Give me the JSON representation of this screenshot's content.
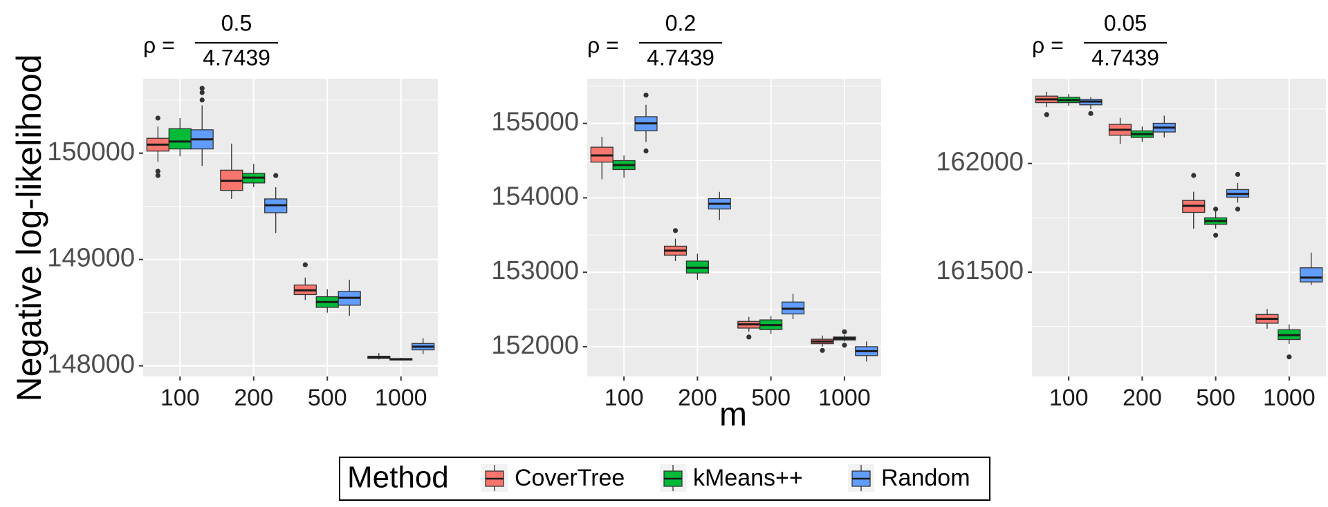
{
  "y_axis_label": "Negative log-likelihood",
  "x_axis_label": "m",
  "legend": {
    "title": "Method",
    "items": [
      {
        "label": "CoverTree",
        "color": "#F8766D"
      },
      {
        "label": "kMeans++",
        "color": "#00BA38"
      },
      {
        "label": "Random",
        "color": "#619CFF"
      }
    ]
  },
  "chart_data": [
    {
      "type": "box",
      "title": {
        "prefix": "ρ =",
        "numerator": "0.5",
        "denominator": "4.7439"
      },
      "xlabel": "",
      "ylabel": "Negative log-likelihood",
      "categories": [
        "100",
        "200",
        "500",
        "1000"
      ],
      "yticks": [
        148000,
        149000,
        150000
      ],
      "ylim": [
        147900,
        150700
      ],
      "grid": true,
      "series": [
        {
          "name": "CoverTree",
          "boxes": [
            {
              "min": 149920,
              "q1": 150020,
              "median": 150080,
              "q3": 150140,
              "max": 150250,
              "outliers": [
                150330,
                149830,
                149790
              ]
            },
            {
              "min": 149570,
              "q1": 149650,
              "median": 149740,
              "q3": 149840,
              "max": 150090,
              "outliers": []
            },
            {
              "min": 148620,
              "q1": 148670,
              "median": 148710,
              "q3": 148760,
              "max": 148830,
              "outliers": [
                148950
              ]
            },
            {
              "min": 148060,
              "q1": 148070,
              "median": 148080,
              "q3": 148090,
              "max": 148120,
              "outliers": []
            }
          ]
        },
        {
          "name": "kMeans++",
          "boxes": [
            {
              "min": 149970,
              "q1": 150040,
              "median": 150110,
              "q3": 150230,
              "max": 150330,
              "outliers": []
            },
            {
              "min": 149680,
              "q1": 149720,
              "median": 149770,
              "q3": 149810,
              "max": 149900,
              "outliers": []
            },
            {
              "min": 148500,
              "q1": 148550,
              "median": 148600,
              "q3": 148650,
              "max": 148720,
              "outliers": []
            },
            {
              "min": 148050,
              "q1": 148055,
              "median": 148062,
              "q3": 148068,
              "max": 148075,
              "outliers": []
            }
          ]
        },
        {
          "name": "Random",
          "boxes": [
            {
              "min": 149880,
              "q1": 150040,
              "median": 150130,
              "q3": 150220,
              "max": 150450,
              "outliers": [
                150610,
                150570,
                150500
              ]
            },
            {
              "min": 149250,
              "q1": 149440,
              "median": 149510,
              "q3": 149570,
              "max": 149680,
              "outliers": [
                149790
              ]
            },
            {
              "min": 148470,
              "q1": 148570,
              "median": 148640,
              "q3": 148700,
              "max": 148810,
              "outliers": []
            },
            {
              "min": 148110,
              "q1": 148150,
              "median": 148180,
              "q3": 148210,
              "max": 148260,
              "outliers": []
            }
          ]
        }
      ]
    },
    {
      "type": "box",
      "title": {
        "prefix": "ρ =",
        "numerator": "0.2",
        "denominator": "4.7439"
      },
      "xlabel": "m",
      "ylabel": "",
      "categories": [
        "100",
        "200",
        "500",
        "1000"
      ],
      "yticks": [
        152000,
        153000,
        154000,
        155000
      ],
      "ylim": [
        151600,
        155600
      ],
      "grid": true,
      "series": [
        {
          "name": "CoverTree",
          "boxes": [
            {
              "min": 154250,
              "q1": 154480,
              "median": 154570,
              "q3": 154680,
              "max": 154820,
              "outliers": []
            },
            {
              "min": 153150,
              "q1": 153230,
              "median": 153290,
              "q3": 153350,
              "max": 153450,
              "outliers": [
                153560
              ]
            },
            {
              "min": 152200,
              "q1": 152250,
              "median": 152300,
              "q3": 152340,
              "max": 152400,
              "outliers": [
                152130
              ]
            },
            {
              "min": 152000,
              "q1": 152040,
              "median": 152070,
              "q3": 152100,
              "max": 152150,
              "outliers": [
                151950
              ]
            }
          ]
        },
        {
          "name": "kMeans++",
          "boxes": [
            {
              "min": 154270,
              "q1": 154380,
              "median": 154440,
              "q3": 154500,
              "max": 154570,
              "outliers": []
            },
            {
              "min": 152900,
              "q1": 152990,
              "median": 153060,
              "q3": 153150,
              "max": 153250,
              "outliers": []
            },
            {
              "min": 152170,
              "q1": 152230,
              "median": 152290,
              "q3": 152360,
              "max": 152410,
              "outliers": []
            },
            {
              "min": 152070,
              "q1": 152090,
              "median": 152110,
              "q3": 152130,
              "max": 152160,
              "outliers": [
                152200,
                152020
              ]
            }
          ]
        },
        {
          "name": "Random",
          "boxes": [
            {
              "min": 154750,
              "q1": 154900,
              "median": 155000,
              "q3": 155090,
              "max": 155250,
              "outliers": [
                155380,
                154630
              ]
            },
            {
              "min": 153700,
              "q1": 153850,
              "median": 153920,
              "q3": 153990,
              "max": 154080,
              "outliers": []
            },
            {
              "min": 152370,
              "q1": 152440,
              "median": 152510,
              "q3": 152600,
              "max": 152710,
              "outliers": []
            },
            {
              "min": 151800,
              "q1": 151880,
              "median": 151940,
              "q3": 152000,
              "max": 152070,
              "outliers": []
            }
          ]
        }
      ]
    },
    {
      "type": "box",
      "title": {
        "prefix": "ρ =",
        "numerator": "0.05",
        "denominator": "4.7439"
      },
      "xlabel": "",
      "ylabel": "",
      "categories": [
        "100",
        "200",
        "500",
        "1000"
      ],
      "yticks": [
        161500,
        162000
      ],
      "ylim": [
        161020,
        162390
      ],
      "grid": true,
      "series": [
        {
          "name": "CoverTree",
          "boxes": [
            {
              "min": 162260,
              "q1": 162280,
              "median": 162295,
              "q3": 162310,
              "max": 162330,
              "outliers": [
                162225
              ]
            },
            {
              "min": 162090,
              "q1": 162130,
              "median": 162155,
              "q3": 162180,
              "max": 162210,
              "outliers": []
            },
            {
              "min": 161700,
              "q1": 161775,
              "median": 161805,
              "q3": 161830,
              "max": 161870,
              "outliers": [
                161945
              ]
            },
            {
              "min": 161240,
              "q1": 161265,
              "median": 161285,
              "q3": 161305,
              "max": 161330,
              "outliers": []
            }
          ]
        },
        {
          "name": "kMeans++",
          "boxes": [
            {
              "min": 162265,
              "q1": 162280,
              "median": 162292,
              "q3": 162305,
              "max": 162320,
              "outliers": []
            },
            {
              "min": 162100,
              "q1": 162120,
              "median": 162135,
              "q3": 162150,
              "max": 162170,
              "outliers": []
            },
            {
              "min": 161700,
              "q1": 161720,
              "median": 161735,
              "q3": 161750,
              "max": 161780,
              "outliers": [
                161790,
                161670
              ]
            },
            {
              "min": 161170,
              "q1": 161190,
              "median": 161210,
              "q3": 161235,
              "max": 161260,
              "outliers": [
                161110
              ]
            }
          ]
        },
        {
          "name": "Random",
          "boxes": [
            {
              "min": 162250,
              "q1": 162270,
              "median": 162285,
              "q3": 162295,
              "max": 162305,
              "outliers": [
                162230
              ]
            },
            {
              "min": 162120,
              "q1": 162145,
              "median": 162165,
              "q3": 162185,
              "max": 162220,
              "outliers": []
            },
            {
              "min": 161820,
              "q1": 161845,
              "median": 161860,
              "q3": 161880,
              "max": 161910,
              "outliers": [
                161950,
                161790
              ]
            },
            {
              "min": 161440,
              "q1": 161455,
              "median": 161475,
              "q3": 161520,
              "max": 161590,
              "outliers": []
            }
          ]
        }
      ]
    }
  ]
}
